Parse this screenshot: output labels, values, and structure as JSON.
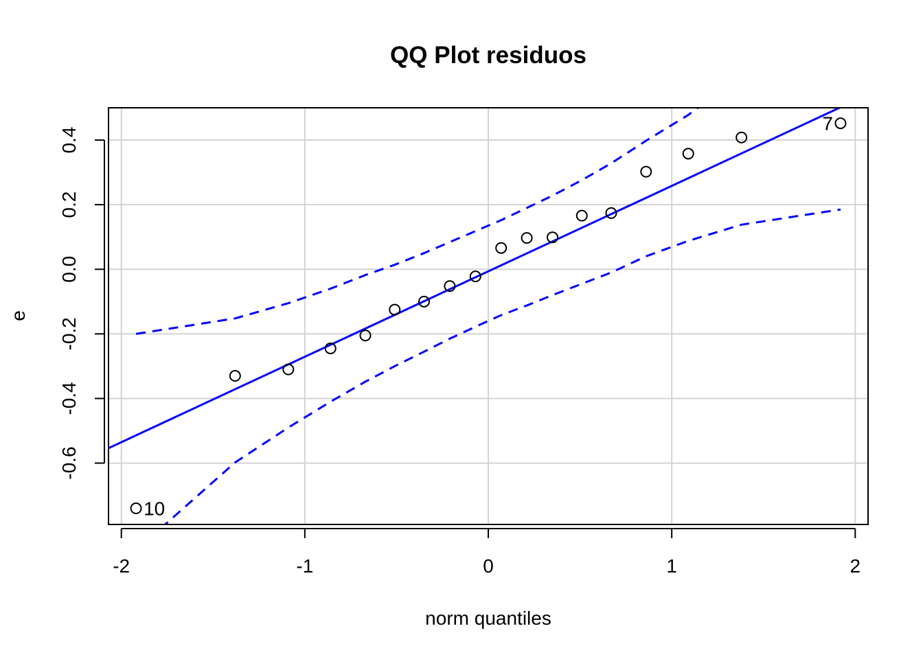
{
  "chart_data": {
    "type": "scatter",
    "title": "QQ Plot residuos",
    "xlabel": "norm quantiles",
    "ylabel": "e",
    "xlim": [
      -2.07,
      2.07
    ],
    "ylim": [
      -0.79,
      0.5
    ],
    "x_ticks": [
      {
        "value": -2,
        "label": "-2"
      },
      {
        "value": -1,
        "label": "-1"
      },
      {
        "value": 0,
        "label": "0"
      },
      {
        "value": 1,
        "label": "1"
      },
      {
        "value": 2,
        "label": "2"
      }
    ],
    "y_ticks": [
      {
        "value": -0.6,
        "label": "-0.6"
      },
      {
        "value": -0.4,
        "label": "-0.4"
      },
      {
        "value": -0.2,
        "label": "-0.2"
      },
      {
        "value": 0.0,
        "label": "0.0"
      },
      {
        "value": 0.2,
        "label": "0.2"
      },
      {
        "value": 0.4,
        "label": "0.4"
      }
    ],
    "grid": true,
    "points": [
      {
        "x": -1.92,
        "y": -0.74,
        "label": "10"
      },
      {
        "x": -1.38,
        "y": -0.33
      },
      {
        "x": -1.09,
        "y": -0.31
      },
      {
        "x": -0.86,
        "y": -0.245
      },
      {
        "x": -0.67,
        "y": -0.205
      },
      {
        "x": -0.51,
        "y": -0.125
      },
      {
        "x": -0.35,
        "y": -0.1
      },
      {
        "x": -0.21,
        "y": -0.052
      },
      {
        "x": -0.07,
        "y": -0.022
      },
      {
        "x": 0.07,
        "y": 0.066
      },
      {
        "x": 0.21,
        "y": 0.097
      },
      {
        "x": 0.35,
        "y": 0.099
      },
      {
        "x": 0.51,
        "y": 0.166
      },
      {
        "x": 0.67,
        "y": 0.174
      },
      {
        "x": 0.86,
        "y": 0.302
      },
      {
        "x": 1.09,
        "y": 0.358
      },
      {
        "x": 1.38,
        "y": 0.408
      },
      {
        "x": 1.92,
        "y": 0.452,
        "label": "7"
      }
    ],
    "reference_line": {
      "intercept": -0.0063,
      "slope": 0.2645,
      "color": "#0000ff"
    },
    "envelope_upper": [
      [
        -1.92,
        -0.2
      ],
      [
        -1.38,
        -0.152
      ],
      [
        -1.09,
        -0.105
      ],
      [
        -0.86,
        -0.06
      ],
      [
        -0.67,
        -0.018
      ],
      [
        -0.51,
        0.014
      ],
      [
        -0.35,
        0.05
      ],
      [
        -0.21,
        0.084
      ],
      [
        -0.07,
        0.118
      ],
      [
        0.07,
        0.152
      ],
      [
        0.21,
        0.19
      ],
      [
        0.35,
        0.228
      ],
      [
        0.51,
        0.276
      ],
      [
        0.67,
        0.328
      ],
      [
        0.86,
        0.398
      ],
      [
        1.09,
        0.478
      ],
      [
        1.38,
        0.6
      ],
      [
        1.92,
        0.86
      ]
    ],
    "envelope_lower": [
      [
        -1.92,
        -0.87
      ],
      [
        -1.38,
        -0.598
      ],
      [
        -1.09,
        -0.49
      ],
      [
        -0.86,
        -0.41
      ],
      [
        -0.67,
        -0.348
      ],
      [
        -0.51,
        -0.3
      ],
      [
        -0.35,
        -0.255
      ],
      [
        -0.21,
        -0.215
      ],
      [
        -0.07,
        -0.178
      ],
      [
        0.07,
        -0.142
      ],
      [
        0.21,
        -0.112
      ],
      [
        0.35,
        -0.08
      ],
      [
        0.51,
        -0.045
      ],
      [
        0.67,
        -0.01
      ],
      [
        0.86,
        0.04
      ],
      [
        1.09,
        0.088
      ],
      [
        1.38,
        0.138
      ],
      [
        1.92,
        0.185
      ]
    ],
    "line_color": "#0000ff",
    "point_color": "#000000"
  }
}
